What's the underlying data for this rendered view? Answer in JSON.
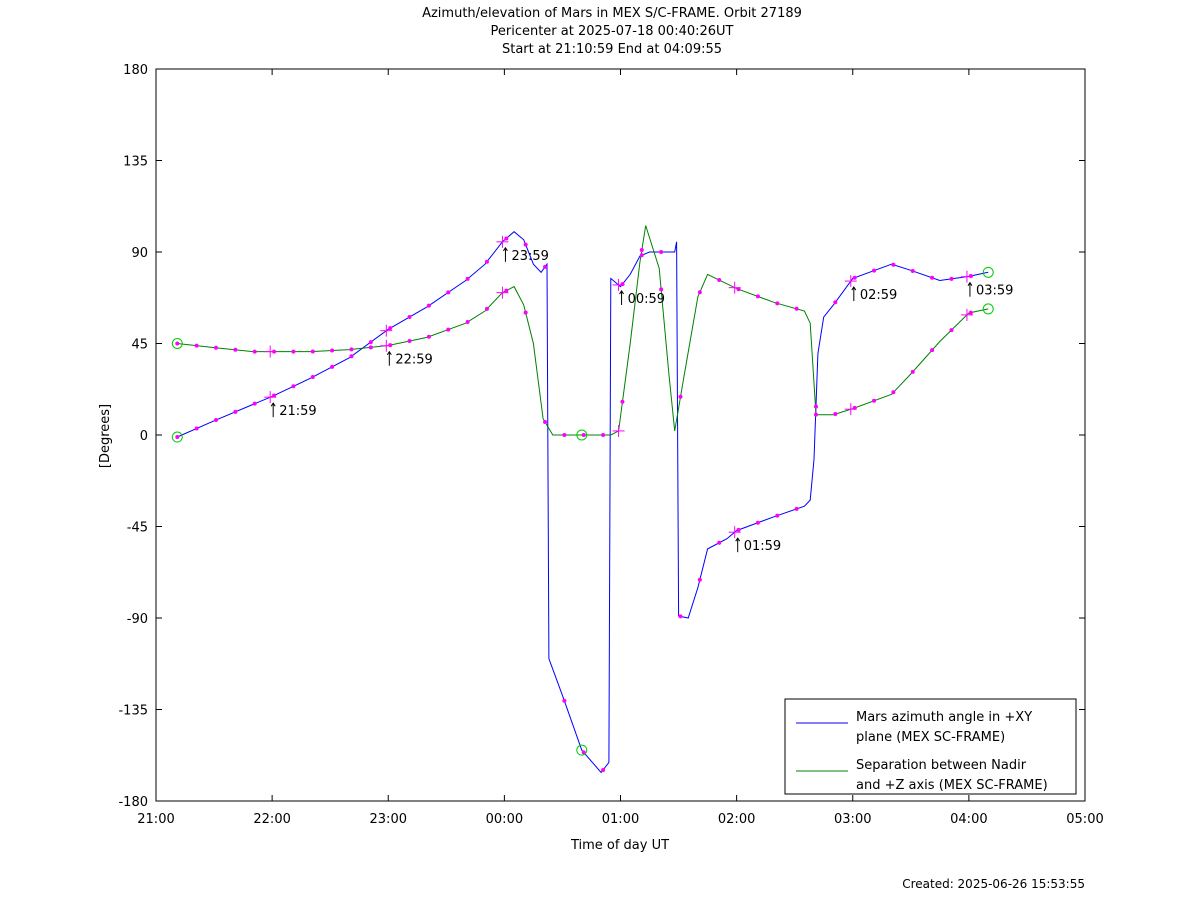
{
  "chart_data": {
    "type": "line",
    "title": [
      "Azimuth/elevation of Mars in MEX S/C-FRAME.  Orbit 27189",
      "Pericenter at 2025-07-18 00:40:26UT",
      "Start at 21:10:59 End at 04:09:55"
    ],
    "xlabel": "Time of day UT",
    "ylabel": "[Degrees]",
    "xlim": [
      "21:00",
      "05:00"
    ],
    "ylim": [
      -180,
      180
    ],
    "x_ticks": [
      "21:00",
      "22:00",
      "23:00",
      "00:00",
      "01:00",
      "02:00",
      "03:00",
      "04:00",
      "05:00"
    ],
    "y_ticks": [
      180,
      135,
      90,
      45,
      0,
      -45,
      -90,
      -135,
      -180
    ],
    "grid": false,
    "legend_position": "bottom-right",
    "series": [
      {
        "name": "Mars azimuth angle in +XY plane (MEX SC-FRAME)",
        "color": "#0000ff",
        "points": [
          [
            "21:11",
            -1
          ],
          [
            "21:30",
            7
          ],
          [
            "21:50",
            15
          ],
          [
            "22:00",
            19
          ],
          [
            "22:20",
            28
          ],
          [
            "22:40",
            38
          ],
          [
            "23:00",
            52
          ],
          [
            "23:20",
            63
          ],
          [
            "23:40",
            76
          ],
          [
            "23:50",
            84
          ],
          [
            "23:59",
            95
          ],
          [
            "00:05",
            100
          ],
          [
            "00:10",
            96
          ],
          [
            "00:15",
            84
          ],
          [
            "00:19",
            80
          ],
          [
            "00:22",
            84
          ],
          [
            "00:23",
            -110
          ],
          [
            "00:30",
            -128
          ],
          [
            "00:40",
            -155
          ],
          [
            "00:50",
            -166
          ],
          [
            "00:54",
            -161
          ],
          [
            "00:55",
            77
          ],
          [
            "01:00",
            73
          ],
          [
            "01:05",
            79
          ],
          [
            "01:10",
            88
          ],
          [
            "01:15",
            90
          ],
          [
            "01:28",
            90
          ],
          [
            "01:29",
            95
          ],
          [
            "01:30",
            -89
          ],
          [
            "01:35",
            -90
          ],
          [
            "01:40",
            -75
          ],
          [
            "01:45",
            -56
          ],
          [
            "01:55",
            -51
          ],
          [
            "02:00",
            -47
          ],
          [
            "02:20",
            -40
          ],
          [
            "02:35",
            -35
          ],
          [
            "02:38",
            -32
          ],
          [
            "02:40",
            -12
          ],
          [
            "02:42",
            40
          ],
          [
            "02:45",
            58
          ],
          [
            "02:50",
            64
          ],
          [
            "03:00",
            77
          ],
          [
            "03:20",
            84
          ],
          [
            "03:30",
            81
          ],
          [
            "03:45",
            76
          ],
          [
            "04:00",
            78
          ],
          [
            "04:10",
            80
          ]
        ]
      },
      {
        "name": "Separation between Nadir and +Z axis (MEX SC-FRAME)",
        "color": "#008000",
        "points": [
          [
            "21:11",
            45
          ],
          [
            "21:30",
            43
          ],
          [
            "21:50",
            41
          ],
          [
            "22:00",
            41
          ],
          [
            "22:20",
            41
          ],
          [
            "22:40",
            42
          ],
          [
            "23:00",
            44
          ],
          [
            "23:20",
            48
          ],
          [
            "23:40",
            55
          ],
          [
            "23:50",
            61
          ],
          [
            "23:59",
            70
          ],
          [
            "00:05",
            73
          ],
          [
            "00:10",
            64
          ],
          [
            "00:15",
            45
          ],
          [
            "00:20",
            8
          ],
          [
            "00:25",
            0
          ],
          [
            "00:35",
            0
          ],
          [
            "00:45",
            0
          ],
          [
            "00:55",
            0
          ],
          [
            "00:59",
            2
          ],
          [
            "01:05",
            45
          ],
          [
            "01:10",
            85
          ],
          [
            "01:13",
            103
          ],
          [
            "01:20",
            82
          ],
          [
            "01:25",
            30
          ],
          [
            "01:28",
            2
          ],
          [
            "01:33",
            30
          ],
          [
            "01:40",
            68
          ],
          [
            "01:45",
            79
          ],
          [
            "02:00",
            72
          ],
          [
            "02:20",
            65
          ],
          [
            "02:35",
            61
          ],
          [
            "02:38",
            55
          ],
          [
            "02:41",
            10
          ],
          [
            "02:50",
            10
          ],
          [
            "03:00",
            13
          ],
          [
            "03:20",
            20
          ],
          [
            "03:30",
            30
          ],
          [
            "03:45",
            46
          ],
          [
            "04:00",
            60
          ],
          [
            "04:10",
            62
          ]
        ]
      }
    ],
    "tick_marks": [
      {
        "label": "21:59",
        "series": 0,
        "time": "21:59"
      },
      {
        "label": "22:59",
        "series": 1,
        "time": "22:59"
      },
      {
        "label": "23:59",
        "series": 0,
        "time": "23:59"
      },
      {
        "label": "00:59",
        "series": 0,
        "time": "00:59"
      },
      {
        "label": "01:59",
        "series": 0,
        "time": "01:59"
      },
      {
        "label": "02:59",
        "series": 0,
        "time": "02:59"
      },
      {
        "label": "03:59",
        "series": 0,
        "time": "03:59"
      }
    ],
    "circle_markers": [
      {
        "series": 0,
        "time": "21:11"
      },
      {
        "series": 1,
        "time": "21:11"
      },
      {
        "series": 0,
        "time": "00:40"
      },
      {
        "series": 1,
        "time": "00:40"
      },
      {
        "series": 0,
        "time": "04:10"
      },
      {
        "series": 1,
        "time": "04:10"
      }
    ],
    "marker_color": "#ff00ff"
  },
  "legend": [
    {
      "lines": [
        "Mars azimuth angle in +XY",
        "plane (MEX SC-FRAME)"
      ],
      "color": "#0000ff"
    },
    {
      "lines": [
        "Separation between Nadir",
        "and +Z axis (MEX SC-FRAME)"
      ],
      "color": "#008000"
    }
  ],
  "footer": {
    "created": "Created: 2025-06-26 15:53:55"
  }
}
